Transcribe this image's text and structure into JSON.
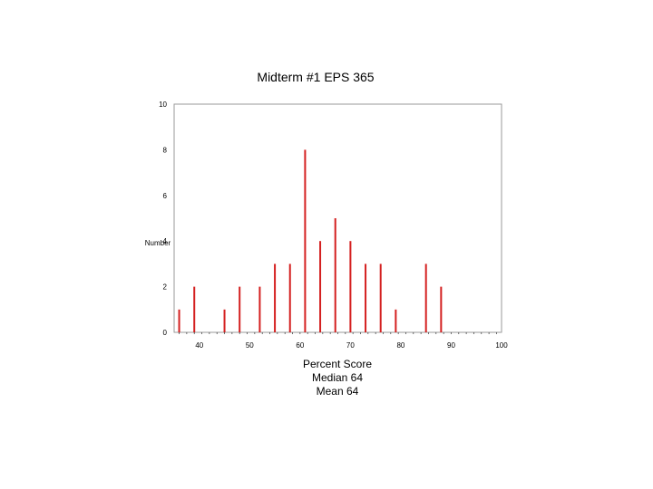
{
  "chart_data": {
    "type": "bar",
    "title": "Midterm #1 EPS 365",
    "xlabel": "Percent Score",
    "xlabel_lines": [
      "Median 64",
      "Mean 64"
    ],
    "ylabel": "Number",
    "xlim": [
      35,
      100
    ],
    "ylim": [
      0,
      10
    ],
    "xticks": [
      40,
      50,
      60,
      70,
      80,
      90,
      100
    ],
    "yticks": [
      0,
      2,
      4,
      6,
      8,
      10
    ],
    "grid": false,
    "bar_color": "#d42020",
    "x": [
      36,
      39,
      45,
      48,
      52,
      55,
      58,
      61,
      64,
      67,
      70,
      73,
      76,
      79,
      85,
      88
    ],
    "values": [
      1,
      2,
      1,
      2,
      2,
      3,
      3,
      8,
      4,
      5,
      4,
      3,
      3,
      1,
      3,
      2
    ]
  }
}
